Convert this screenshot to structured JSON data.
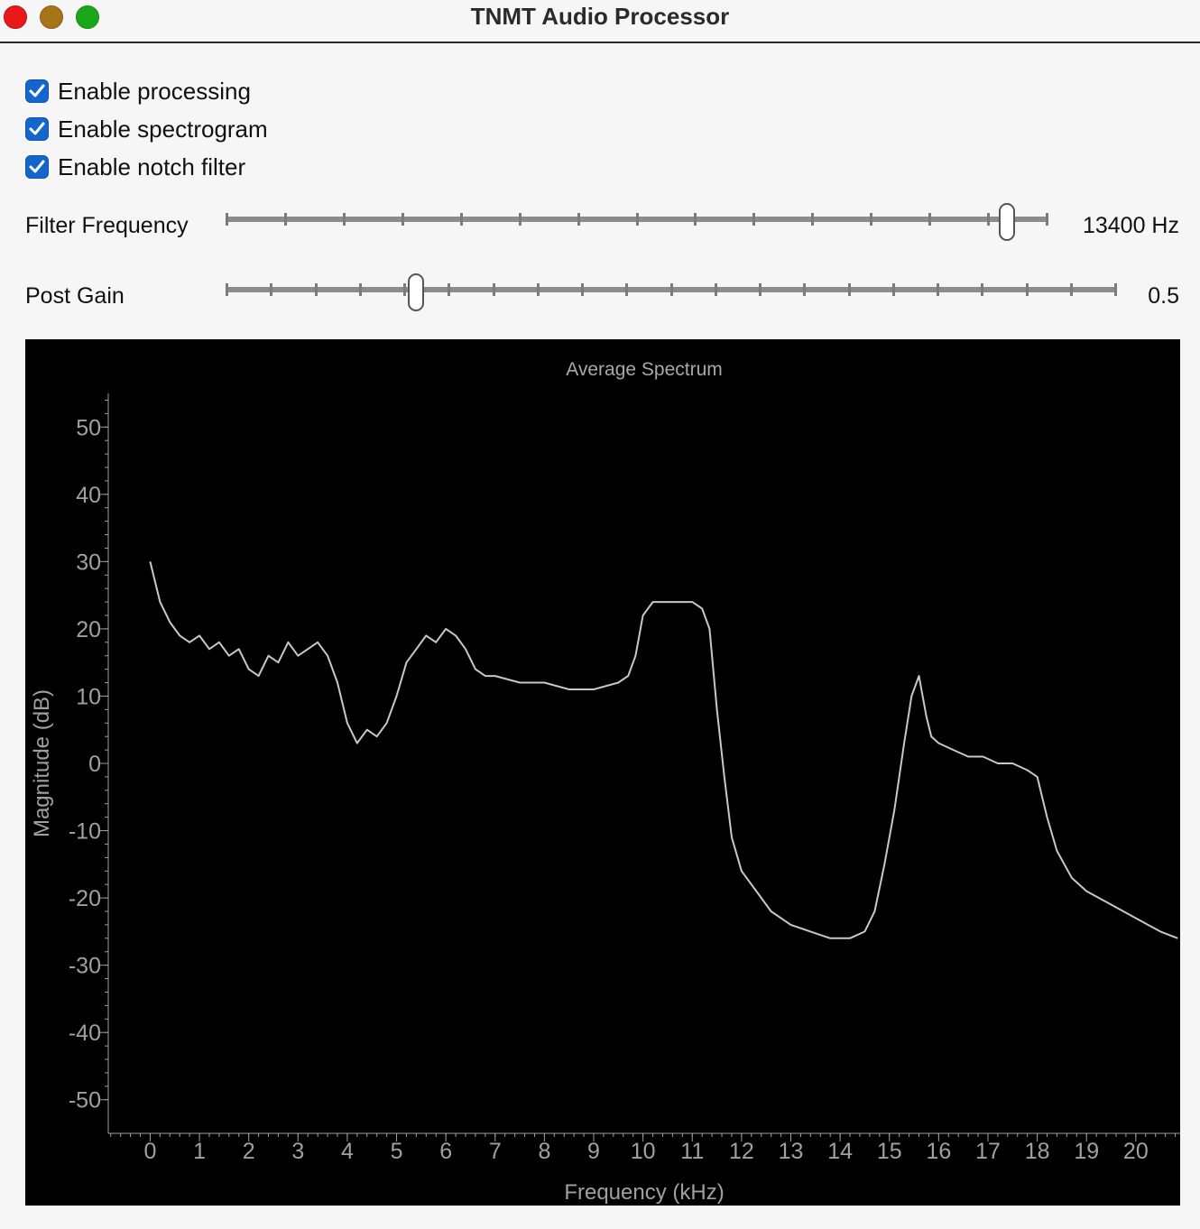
{
  "window": {
    "title": "TNMT Audio Processor"
  },
  "checkboxes": [
    {
      "label": "Enable processing",
      "checked": true
    },
    {
      "label": "Enable spectrogram",
      "checked": true
    },
    {
      "label": "Enable notch filter",
      "checked": true
    }
  ],
  "filter_frequency": {
    "label": "Filter Frequency",
    "value_text": "13400 Hz",
    "fraction": 0.95
  },
  "post_gain": {
    "label": "Post Gain",
    "value_text": "0.5",
    "fraction": 0.214
  },
  "colors": {
    "accent": "#1466cc",
    "plot_bg": "#000000",
    "trace": "#c8c8c8",
    "axis": "#a0a0a0"
  },
  "chart_data": {
    "type": "line",
    "title": "Average Spectrum",
    "xlabel": "Frequency (kHz)",
    "ylabel": "Magnitude (dB)",
    "xlim": [
      -0.85,
      20.9
    ],
    "ylim": [
      -55,
      55
    ],
    "xticks": [
      0,
      1,
      2,
      3,
      4,
      5,
      6,
      7,
      8,
      9,
      10,
      11,
      12,
      13,
      14,
      15,
      16,
      17,
      18,
      19,
      20
    ],
    "yticks": [
      50,
      40,
      30,
      20,
      10,
      0,
      -10,
      -20,
      -30,
      -40,
      -50
    ],
    "grid": false,
    "series": [
      {
        "x": [
          0,
          0.1,
          0.2,
          0.4,
          0.6,
          0.8,
          1.0,
          1.2,
          1.4,
          1.6,
          1.8,
          2.0,
          2.2,
          2.4,
          2.6,
          2.8,
          3.0,
          3.2,
          3.4,
          3.6,
          3.8,
          4.0,
          4.2,
          4.4,
          4.6,
          4.8,
          5.0,
          5.2,
          5.4,
          5.6,
          5.8,
          6.0,
          6.2,
          6.4,
          6.6,
          6.8,
          7.0,
          7.5,
          8.0,
          8.5,
          9.0,
          9.5,
          9.7,
          9.85,
          10.0,
          10.2,
          10.5,
          10.8,
          11.0,
          11.2,
          11.35,
          11.5,
          11.65,
          11.8,
          12.0,
          12.3,
          12.6,
          13.0,
          13.4,
          13.8,
          14.2,
          14.5,
          14.7,
          14.9,
          15.1,
          15.3,
          15.45,
          15.6,
          15.75,
          15.85,
          16.0,
          16.3,
          16.6,
          16.9,
          17.2,
          17.5,
          17.8,
          18.0,
          18.2,
          18.4,
          18.7,
          19.0,
          19.5,
          20.0,
          20.5,
          20.85
        ],
        "y": [
          30,
          27,
          24,
          21,
          19,
          18,
          19,
          17,
          18,
          16,
          17,
          14,
          13,
          16,
          15,
          18,
          16,
          17,
          18,
          16,
          12,
          6,
          3,
          5,
          4,
          6,
          10,
          15,
          17,
          19,
          18,
          20,
          19,
          17,
          14,
          13,
          13,
          12,
          12,
          11,
          11,
          12,
          13,
          16,
          22,
          24,
          24,
          24,
          24,
          23,
          20,
          8,
          -2,
          -11,
          -16,
          -19,
          -22,
          -24,
          -25,
          -26,
          -26,
          -25,
          -22,
          -15,
          -7,
          3,
          10,
          13,
          7,
          4,
          3,
          2,
          1,
          1,
          0,
          0,
          -1,
          -2,
          -8,
          -13,
          -17,
          -19,
          -21,
          -23,
          -25,
          -26
        ]
      }
    ]
  }
}
